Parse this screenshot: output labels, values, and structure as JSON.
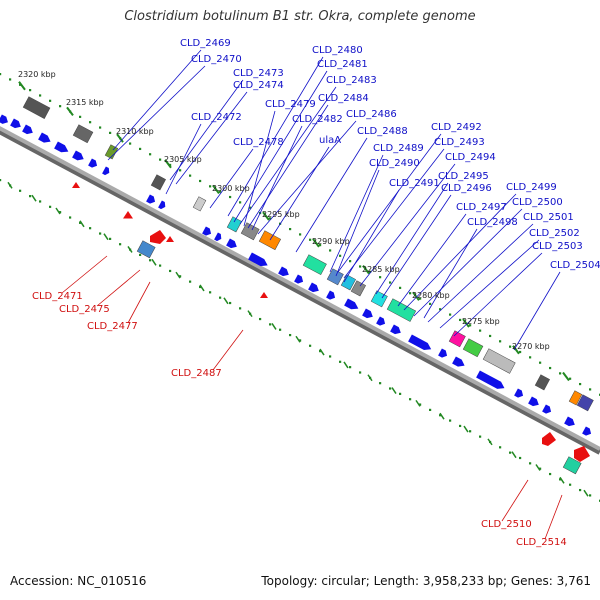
{
  "title": "Clostridium botulinum B1 str. Okra, complete genome",
  "footer": {
    "accession": "Accession: NC_010516",
    "summary": "Topology: circular; Length: 3,958,233 bp; Genes: 3,761"
  },
  "colors": {
    "forward_gene": "#1010e8",
    "reverse_gene": "#e81010",
    "top_label": "#1010c8",
    "bottom_label": "#d01010",
    "tick": "#228822",
    "axis": "#777777"
  },
  "scale_labels": [
    "2320 kbp",
    "2315 kbp",
    "2310 kbp",
    "2305 kbp",
    "2300 kbp",
    "2295 kbp",
    "2290 kbp",
    "2285 kbp",
    "2280 kbp",
    "2275 kbp",
    "2270 kbp"
  ],
  "top_labels": [
    "CLD_2469",
    "CLD_2470",
    "CLD_2473",
    "CLD_2474",
    "CLD_2472",
    "CLD_2480",
    "CLD_2481",
    "CLD_2483",
    "CLD_2479",
    "CLD_2484",
    "CLD_2482",
    "CLD_2486",
    "CLD_2478",
    "ulaA",
    "CLD_2488",
    "CLD_2492",
    "CLD_2493",
    "CLD_2489",
    "CLD_2490",
    "CLD_2494",
    "CLD_2491",
    "CLD_2495",
    "CLD_2496",
    "CLD_2499",
    "CLD_2500",
    "CLD_2497",
    "CLD_2501",
    "CLD_2498",
    "CLD_2502",
    "CLD_2503",
    "CLD_2504"
  ],
  "bottom_labels": [
    "CLD_2471",
    "CLD_2475",
    "CLD_2477",
    "CLD_2487",
    "CLD_2510",
    "CLD_2514"
  ]
}
